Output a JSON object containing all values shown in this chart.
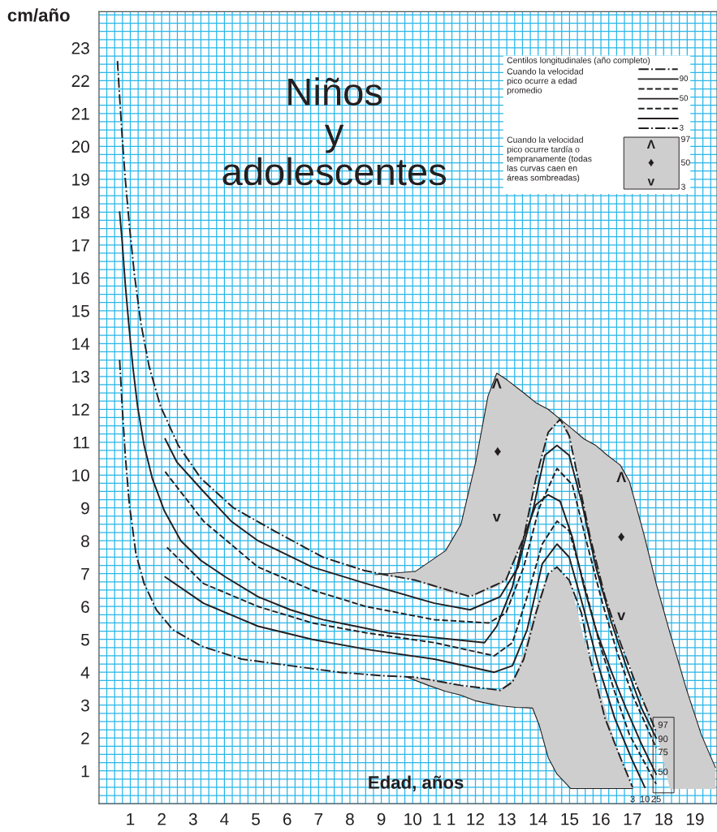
{
  "chart_data": {
    "type": "line",
    "title": "Niños\ny\nadolescentes",
    "xlabel": "Edad, años",
    "ylabel": "cm/año",
    "legend_title": "Centilos longitudinales (año completo)",
    "xlim": [
      0,
      19.7
    ],
    "ylim": [
      0,
      24.1
    ],
    "xticks": [
      1,
      2,
      3,
      4,
      5,
      6,
      7,
      8,
      9,
      10,
      {
        "value": 11,
        "label": "1 1"
      },
      12,
      13,
      14,
      15,
      16,
      17,
      18,
      19
    ],
    "yticks": [
      1,
      2,
      3,
      4,
      5,
      6,
      7,
      8,
      9,
      10,
      11,
      12,
      13,
      14,
      15,
      16,
      17,
      18,
      19,
      20,
      21,
      22,
      23
    ],
    "grid": true,
    "marker": "none",
    "legend": "top right",
    "series": [
      {
        "type": "line",
        "color": "#231f20",
        "line_style": "solid",
        "x": [
          8.8,
          10.09,
          11.05,
          11.54,
          12.01,
          12.4,
          12.68,
          13.0,
          13.54,
          13.93,
          14.32,
          14.7,
          15.09,
          15.46,
          15.84,
          16.21,
          16.62,
          16.91,
          17.37,
          17.76,
          18.2,
          18.72,
          19.2,
          19.65
        ],
        "lower": [
          6.97,
          6.8,
          6.45,
          6.35,
          6.35,
          6.5,
          6.6,
          6.8,
          8.1,
          9.9,
          11.3,
          11.66,
          10.9,
          8.9,
          7.3,
          6.0,
          4.9,
          4.2,
          3.0,
          2.2,
          0.45,
          0.45,
          0.45,
          0.45
        ],
        "upper": [
          6.97,
          7.07,
          7.7,
          8.5,
          10.4,
          12.4,
          13.1,
          12.9,
          12.5,
          12.2,
          12.0,
          11.7,
          11.4,
          11.1,
          10.9,
          10.6,
          10.3,
          9.8,
          8.2,
          6.7,
          5.2,
          3.5,
          2.1,
          1.1
        ],
        "values": [
          6.97,
          7.07,
          7.7,
          8.5,
          10.4,
          12.4,
          13.1,
          12.9,
          12.5,
          12.2,
          12.0,
          11.7,
          11.4,
          11.1,
          10.9,
          10.6,
          10.3,
          9.8,
          8.2,
          6.7,
          5.2,
          3.5,
          2.1,
          1.1
        ]
      },
      {
        "type": "line",
        "color": "#221f20",
        "line_style": "solid",
        "x": [
          9.8,
          10.5,
          11.05,
          11.54,
          12.01,
          12.3,
          12.79,
          13.3,
          13.62,
          13.82,
          14.03,
          14.32,
          14.6,
          15.04,
          15.46,
          15.95,
          16.44,
          17.01
        ],
        "values": [
          3.86,
          3.6,
          3.42,
          3.3,
          3.13,
          3.07,
          2.98,
          2.93,
          2.92,
          2.91,
          2.4,
          1.4,
          0.9,
          0.46,
          0.46,
          0.46,
          0.46,
          0.46
        ],
        "lower": [
          3.86,
          3.6,
          3.42,
          3.3,
          3.13,
          3.07,
          2.98,
          2.93,
          2.92,
          2.91,
          2.4,
          1.4,
          0.9,
          0.46,
          0.46,
          0.46,
          0.46,
          0.46
        ],
        "upper": [
          3.86,
          3.8,
          3.7,
          3.58,
          3.5,
          3.48,
          3.45,
          3.9,
          4.9,
          5.6,
          6.3,
          6.97,
          7.17,
          6.7,
          5.0,
          3.5,
          1.9,
          0.46
        ]
      },
      {
        "name": "97",
        "color": "#231f20",
        "line_style": "dashdot",
        "x": [
          0.59,
          0.66,
          0.74,
          0.84,
          0.97,
          1.13,
          1.34,
          1.6,
          1.96,
          2.53,
          3.25,
          4.29,
          5.59,
          7.14,
          8.44,
          8.95,
          10.09,
          11.83,
          12.97,
          13.54,
          13.93,
          14.32,
          14.7,
          14.99,
          15.27,
          15.66,
          16.13,
          16.62,
          17.09,
          17.58,
          17.76
        ],
        "values": [
          22.6,
          21.5,
          20.3,
          19.0,
          17.6,
          16.1,
          14.6,
          13.3,
          12.1,
          10.9,
          9.9,
          9.0,
          8.3,
          7.5,
          7.1,
          7.0,
          6.8,
          6.3,
          6.8,
          8.1,
          9.9,
          11.3,
          11.7,
          11.2,
          9.9,
          8.1,
          6.3,
          4.9,
          3.7,
          2.6,
          2.2
        ]
      },
      {
        "name": "90",
        "color": "#231f20",
        "line_style": "solid",
        "x": [
          2.11,
          2.48,
          3.33,
          4.21,
          5.07,
          6.8,
          8.51,
          10.69,
          11.83,
          12.79,
          13.36,
          13.85,
          14.21,
          14.6,
          14.99,
          15.38,
          15.84,
          16.34,
          16.8,
          17.3,
          17.76
        ],
        "values": [
          11.1,
          10.4,
          9.5,
          8.6,
          8.0,
          7.2,
          6.7,
          6.1,
          5.9,
          6.3,
          7.2,
          9.0,
          10.6,
          10.9,
          10.6,
          9.2,
          7.2,
          5.5,
          4.2,
          2.9,
          2.0
        ]
      },
      {
        "name": "75",
        "color": "#231f20",
        "line_style": "dashed",
        "x": [
          2.11,
          3.33,
          5.07,
          6.8,
          8.51,
          10.69,
          12.42,
          12.97,
          13.54,
          14.03,
          14.6,
          15.09,
          15.56,
          16.05,
          16.52,
          17.01,
          17.76
        ],
        "values": [
          10.1,
          8.6,
          7.2,
          6.5,
          6.0,
          5.6,
          5.5,
          5.8,
          7.2,
          9.0,
          10.2,
          9.7,
          7.9,
          6.1,
          4.6,
          3.3,
          1.7
        ]
      },
      {
        "name": "50",
        "color": "#231f20",
        "line_style": "solid",
        "x": [
          0.66,
          0.74,
          0.84,
          0.95,
          1.08,
          1.23,
          1.44,
          1.7,
          2.09,
          2.61,
          3.25,
          4.03,
          5.07,
          6.1,
          7.14,
          8.18,
          9.21,
          10.25,
          11.28,
          12.29,
          12.68,
          13.18,
          13.54,
          13.93,
          14.32,
          14.7,
          15.09,
          15.46,
          15.84,
          16.34,
          16.8,
          17.3,
          17.76
        ],
        "values": [
          18.0,
          17.1,
          15.8,
          14.6,
          13.3,
          12.1,
          10.9,
          9.9,
          8.9,
          8.0,
          7.4,
          6.9,
          6.3,
          5.9,
          5.6,
          5.4,
          5.2,
          5.1,
          5.0,
          4.9,
          5.4,
          6.6,
          8.1,
          9.1,
          9.4,
          9.2,
          8.1,
          6.6,
          5.3,
          4.0,
          2.9,
          1.8,
          0.9
        ]
      },
      {
        "name": "25",
        "color": "#231f20",
        "line_style": "dashed",
        "x": [
          2.17,
          3.33,
          5.07,
          6.8,
          8.51,
          10.69,
          12.6,
          13.18,
          13.65,
          14.13,
          14.6,
          14.99,
          15.46,
          15.95,
          16.44,
          16.91,
          17.76
        ],
        "values": [
          7.8,
          6.7,
          6.0,
          5.5,
          5.2,
          4.9,
          4.5,
          4.9,
          6.3,
          7.9,
          8.6,
          8.3,
          6.7,
          4.9,
          3.4,
          2.1,
          0.6
        ]
      },
      {
        "name": "10",
        "color": "#231f20",
        "line_style": "solid",
        "x": [
          2.11,
          3.33,
          5.07,
          6.8,
          8.51,
          10.69,
          12.6,
          13.18,
          13.65,
          14.13,
          14.6,
          14.99,
          15.46,
          15.95,
          16.44,
          17.01,
          17.4
        ],
        "values": [
          6.9,
          6.1,
          5.4,
          5.0,
          4.7,
          4.4,
          4.0,
          4.2,
          5.3,
          7.3,
          7.9,
          7.5,
          5.9,
          4.1,
          2.6,
          1.3,
          0.5
        ]
      },
      {
        "name": "3",
        "color": "#231f20",
        "line_style": "dashdot",
        "x": [
          0.66,
          0.74,
          0.84,
          0.97,
          1.18,
          1.44,
          1.83,
          2.35,
          3.25,
          4.55,
          6.1,
          7.66,
          8.95,
          10.09,
          11.54,
          12.79,
          13.18,
          13.54,
          13.93,
          14.32,
          14.6,
          14.99,
          15.38,
          15.66,
          16.13,
          16.62,
          17.01
        ],
        "values": [
          13.5,
          12.1,
          10.6,
          9.1,
          7.6,
          6.7,
          5.9,
          5.3,
          4.8,
          4.4,
          4.2,
          4.0,
          3.9,
          3.85,
          3.6,
          3.45,
          3.7,
          4.4,
          5.8,
          7.0,
          7.2,
          6.8,
          5.8,
          4.4,
          2.6,
          1.4,
          0.5
        ]
      }
    ],
    "annotations": [
      "Cuando la velocidad\npico ocurre a edad\npromedio",
      "Cuando la velocidad\npico ocurre tardía o\ntempranamente (todas\nlas curvas caen en\náreas sombreadas)",
      "90",
      "50",
      "3",
      "97",
      "50",
      "3",
      "Λ",
      "♦",
      "v",
      "Λ",
      "♦",
      "v",
      "Λ",
      "♦",
      "v"
    ]
  }
}
